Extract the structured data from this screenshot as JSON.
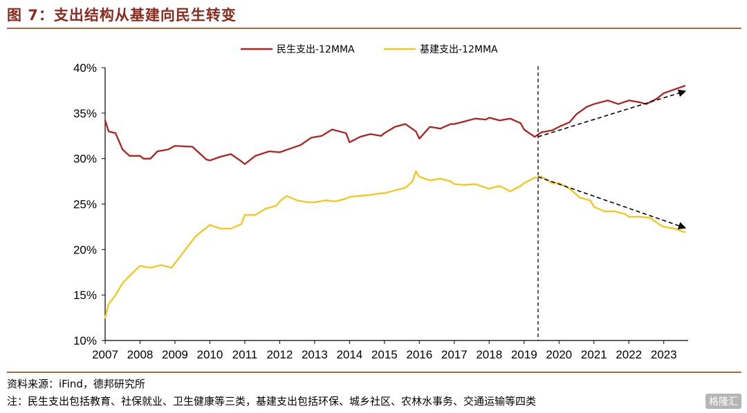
{
  "figure": {
    "title": "图 7：支出结构从基建向民生转变",
    "source": "资料来源：iFind，德邦研究所",
    "note": "注：民生支出包括教育、社保就业、卫生健康等三类，基建支出包括环保、城乡社区、农林水事务、交通运输等四类",
    "watermark": "格隆汇"
  },
  "colors": {
    "livelihood": "#b0201e",
    "infrastructure": "#f5c518",
    "title": "#8b2a1c",
    "rule": "#a06a48"
  },
  "chart_data": {
    "type": "line",
    "title": "",
    "xlabel": "",
    "ylabel": "",
    "xlim": [
      2007.0,
      2023.7
    ],
    "ylim": [
      10,
      40
    ],
    "x_ticks": [
      "2007",
      "2008",
      "2009",
      "2010",
      "2011",
      "2012",
      "2013",
      "2014",
      "2015",
      "2016",
      "2017",
      "2018",
      "2019",
      "2020",
      "2021",
      "2022",
      "2023"
    ],
    "y_ticks": [
      "10%",
      "15%",
      "20%",
      "25%",
      "30%",
      "35%",
      "40%"
    ],
    "legend_position": "top-center",
    "grid": false,
    "series": [
      {
        "name": "民生支出-12MMA",
        "color": "#b0201e",
        "x": [
          2007.0,
          2007.1,
          2007.3,
          2007.5,
          2007.7,
          2008.0,
          2008.1,
          2008.3,
          2008.5,
          2008.8,
          2009.0,
          2009.5,
          2009.9,
          2010.0,
          2010.3,
          2010.6,
          2010.9,
          2011.0,
          2011.3,
          2011.7,
          2012.0,
          2012.3,
          2012.6,
          2012.9,
          2013.2,
          2013.5,
          2013.9,
          2014.0,
          2014.3,
          2014.6,
          2014.9,
          2015.0,
          2015.3,
          2015.6,
          2015.9,
          2016.0,
          2016.3,
          2016.6,
          2016.9,
          2017.0,
          2017.3,
          2017.6,
          2017.9,
          2018.0,
          2018.3,
          2018.6,
          2018.9,
          2019.0,
          2019.3,
          2019.5,
          2019.8,
          2020.0,
          2020.3,
          2020.5,
          2020.8,
          2021.0,
          2021.4,
          2021.7,
          2022.0,
          2022.3,
          2022.5,
          2022.8,
          2023.0,
          2023.3,
          2023.6
        ],
        "y": [
          34.2,
          33.0,
          32.8,
          31.0,
          30.3,
          30.3,
          30.0,
          30.0,
          30.8,
          31.0,
          31.4,
          31.3,
          29.9,
          29.8,
          30.2,
          30.5,
          29.7,
          29.4,
          30.3,
          30.8,
          30.7,
          31.1,
          31.5,
          32.3,
          32.5,
          33.2,
          32.8,
          31.8,
          32.4,
          32.7,
          32.5,
          32.8,
          33.5,
          33.8,
          33.0,
          32.2,
          33.5,
          33.3,
          33.8,
          33.8,
          34.1,
          34.4,
          34.3,
          34.5,
          34.2,
          34.4,
          33.9,
          33.2,
          32.4,
          32.9,
          33.1,
          33.5,
          34.0,
          34.9,
          35.7,
          36.0,
          36.4,
          36.0,
          36.4,
          36.2,
          36.0,
          36.6,
          37.2,
          37.6,
          38.0
        ]
      },
      {
        "name": "基建支出-12MMA",
        "color": "#f5c518",
        "x": [
          2007.0,
          2007.1,
          2007.3,
          2007.5,
          2007.8,
          2008.0,
          2008.3,
          2008.6,
          2008.9,
          2009.0,
          2009.3,
          2009.6,
          2009.9,
          2010.0,
          2010.3,
          2010.6,
          2010.9,
          2011.0,
          2011.3,
          2011.6,
          2011.9,
          2012.0,
          2012.2,
          2012.5,
          2012.8,
          2013.0,
          2013.3,
          2013.6,
          2013.9,
          2014.0,
          2014.3,
          2014.6,
          2014.9,
          2015.0,
          2015.3,
          2015.6,
          2015.8,
          2015.9,
          2016.0,
          2016.3,
          2016.6,
          2016.9,
          2017.0,
          2017.3,
          2017.6,
          2017.9,
          2018.0,
          2018.3,
          2018.6,
          2018.9,
          2019.0,
          2019.3,
          2019.5,
          2019.8,
          2020.0,
          2020.3,
          2020.6,
          2020.9,
          2021.0,
          2021.3,
          2021.6,
          2021.9,
          2022.0,
          2022.3,
          2022.6,
          2022.9,
          2023.0,
          2023.3,
          2023.6
        ],
        "y": [
          12.5,
          14.0,
          15.0,
          16.3,
          17.5,
          18.2,
          18.0,
          18.3,
          18.0,
          18.5,
          20.0,
          21.5,
          22.4,
          22.7,
          22.3,
          22.3,
          22.8,
          23.8,
          23.8,
          24.5,
          24.8,
          25.3,
          25.9,
          25.4,
          25.2,
          25.2,
          25.4,
          25.3,
          25.6,
          25.8,
          25.9,
          26.0,
          26.2,
          26.2,
          26.5,
          26.8,
          27.5,
          28.6,
          28.0,
          27.6,
          27.8,
          27.5,
          27.2,
          27.1,
          27.2,
          26.8,
          26.7,
          27.0,
          26.4,
          27.0,
          27.3,
          27.9,
          28.0,
          27.3,
          27.3,
          26.7,
          25.7,
          25.4,
          24.7,
          24.2,
          24.2,
          23.9,
          23.6,
          23.6,
          23.5,
          22.7,
          22.5,
          22.3,
          21.9
        ]
      }
    ],
    "annotations": {
      "vertical_marker_x": 2019.4,
      "arrows": [
        {
          "from": [
            2019.4,
            32.4
          ],
          "to": [
            2023.6,
            37.4
          ]
        },
        {
          "from": [
            2019.4,
            28.0
          ],
          "to": [
            2023.6,
            22.4
          ]
        }
      ]
    }
  }
}
